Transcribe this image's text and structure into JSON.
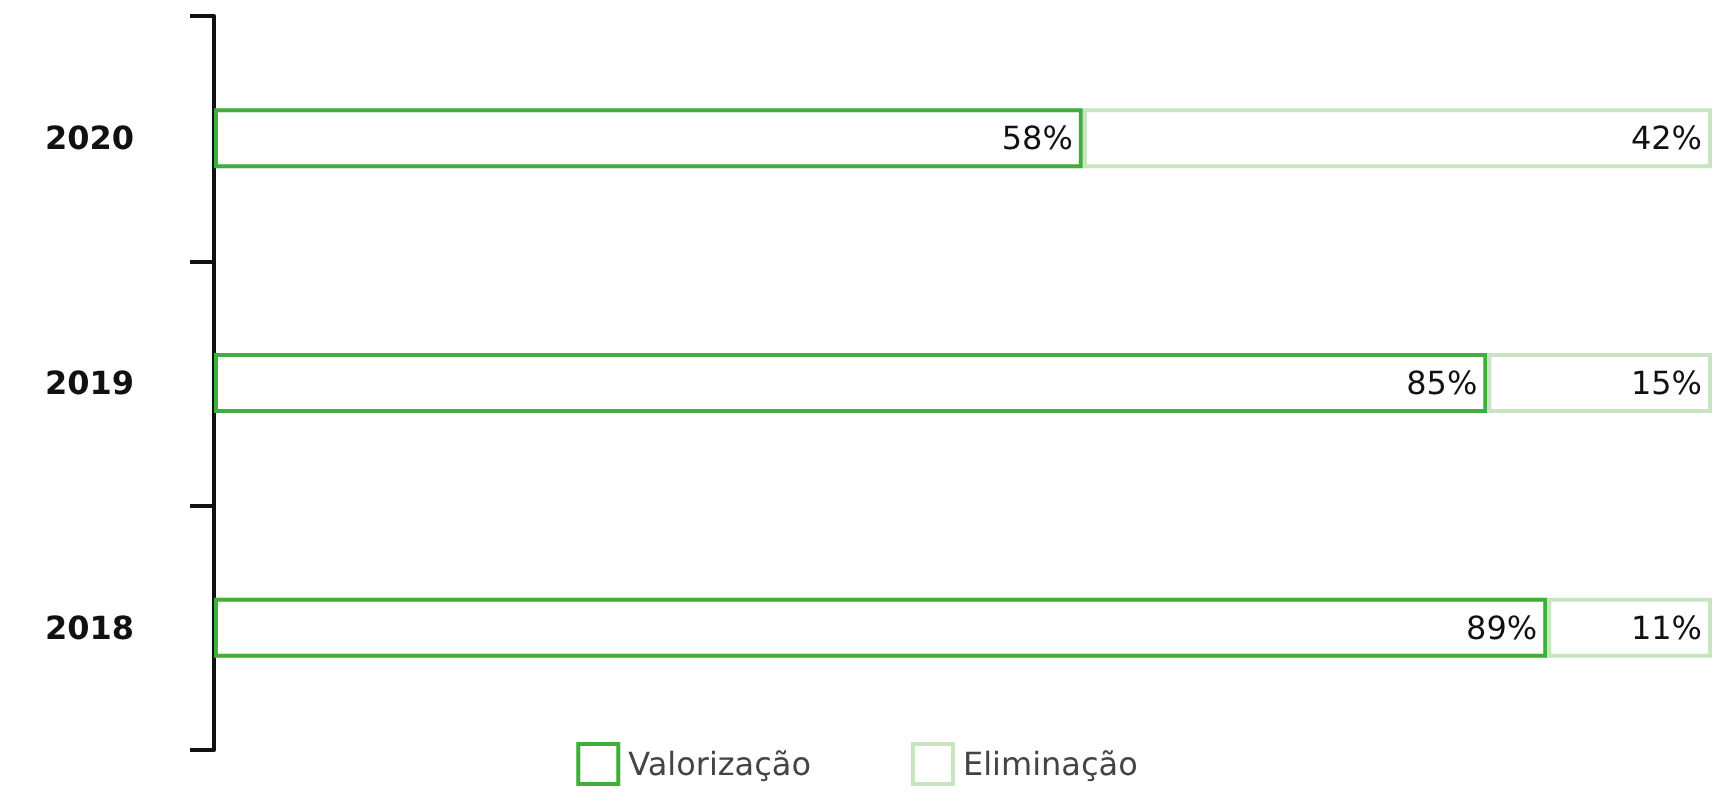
{
  "chart_data": {
    "type": "bar",
    "orientation": "horizontal",
    "stacked": true,
    "categories": [
      "2020",
      "2019",
      "2018"
    ],
    "series": [
      {
        "name": "Valorização",
        "color": "#3fae3a",
        "values": [
          58,
          85,
          89
        ],
        "value_labels": [
          "58%",
          "85%",
          "89%"
        ]
      },
      {
        "name": "Eliminação",
        "color": "#c8e4c0",
        "values": [
          42,
          15,
          11
        ],
        "value_labels": [
          "42%",
          "15%",
          "11%"
        ]
      }
    ],
    "legend": "bottom"
  }
}
